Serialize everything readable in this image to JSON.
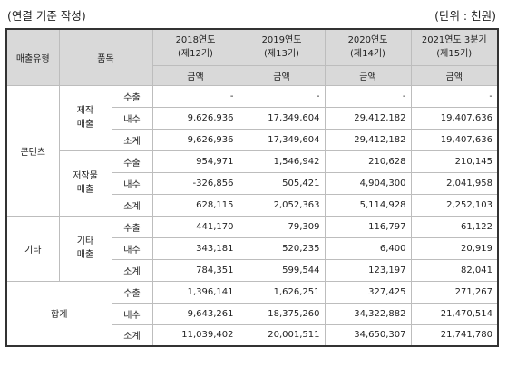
{
  "caption": {
    "left": "(연결 기준 작성)",
    "right": "(단위 : 천원)"
  },
  "header": {
    "col_type": "매출유형",
    "col_item": "품목",
    "years": [
      {
        "year": "2018연도",
        "period": "(제12기)"
      },
      {
        "year": "2019연도",
        "period": "(제13기)"
      },
      {
        "year": "2020연도",
        "period": "(제14기)"
      },
      {
        "year": "2021연도 3분기",
        "period": "(제15기)"
      }
    ],
    "amount_label": "금액"
  },
  "groups": [
    {
      "type": "콘텐츠",
      "subgroups": [
        {
          "item_lines": [
            "제작",
            "매출"
          ],
          "rows": [
            {
              "kind": "수출",
              "values": [
                "-",
                "-",
                "-",
                "-"
              ]
            },
            {
              "kind": "내수",
              "values": [
                "9,626,936",
                "17,349,604",
                "29,412,182",
                "19,407,636"
              ]
            },
            {
              "kind": "소계",
              "values": [
                "9,626,936",
                "17,349,604",
                "29,412,182",
                "19,407,636"
              ]
            }
          ]
        },
        {
          "item_lines": [
            "저작물",
            "매출"
          ],
          "rows": [
            {
              "kind": "수출",
              "values": [
                "954,971",
                "1,546,942",
                "210,628",
                "210,145"
              ]
            },
            {
              "kind": "내수",
              "values": [
                "-326,856",
                "505,421",
                "4,904,300",
                "2,041,958"
              ]
            },
            {
              "kind": "소계",
              "values": [
                "628,115",
                "2,052,363",
                "5,114,928",
                "2,252,103"
              ]
            }
          ]
        }
      ]
    },
    {
      "type": "기타",
      "subgroups": [
        {
          "item_lines": [
            "기타",
            "매출"
          ],
          "rows": [
            {
              "kind": "수출",
              "values": [
                "441,170",
                "79,309",
                "116,797",
                "61,122"
              ]
            },
            {
              "kind": "내수",
              "values": [
                "343,181",
                "520,235",
                "6,400",
                "20,919"
              ]
            },
            {
              "kind": "소계",
              "values": [
                "784,351",
                "599,544",
                "123,197",
                "82,041"
              ]
            }
          ]
        }
      ]
    }
  ],
  "total": {
    "type": "합계",
    "rows": [
      {
        "kind": "수출",
        "values": [
          "1,396,141",
          "1,626,251",
          "327,425",
          "271,267"
        ]
      },
      {
        "kind": "내수",
        "values": [
          "9,643,261",
          "18,375,260",
          "34,322,882",
          "21,470,514"
        ]
      },
      {
        "kind": "소계",
        "values": [
          "11,039,402",
          "20,001,511",
          "34,650,307",
          "21,741,780"
        ]
      }
    ]
  }
}
